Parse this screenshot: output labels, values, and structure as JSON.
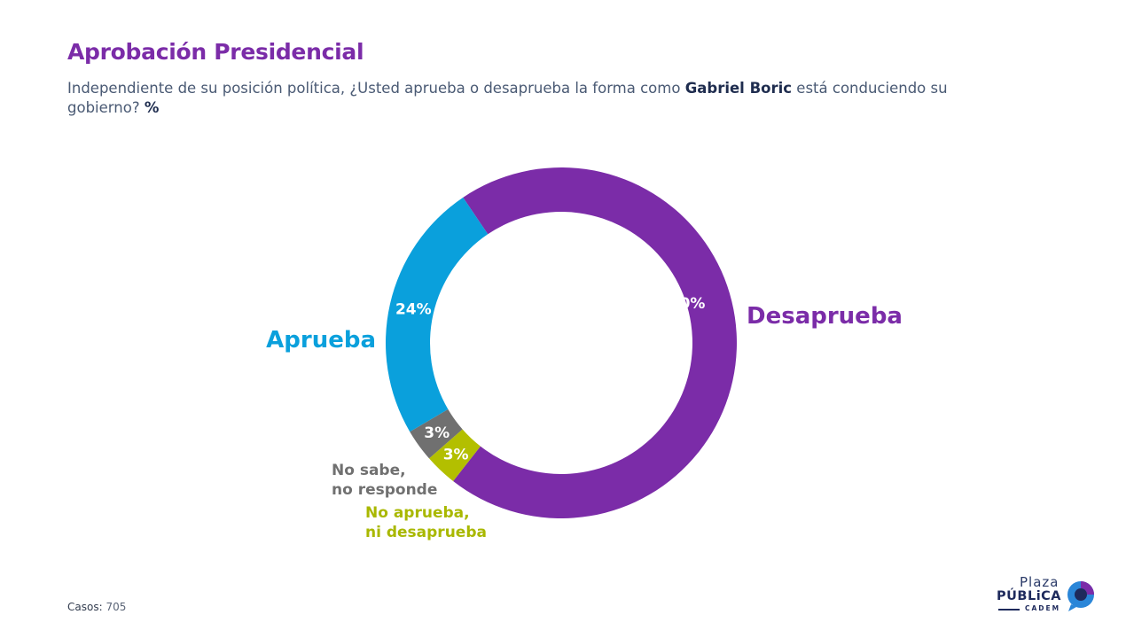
{
  "title": "Aprobación Presidencial",
  "subtitle": {
    "part1": "Independiente de su posición política, ¿Usted aprueba o desaprueba la forma como ",
    "name": "Gabriel Boric",
    "part2": " está conduciendo su gobierno? ",
    "pct": "%"
  },
  "chart_data": {
    "type": "pie",
    "variant": "donut",
    "categories": [
      "Desaprueba",
      "No aprueba, ni desaprueba",
      "No sabe, no responde",
      "Aprueba"
    ],
    "values": [
      70,
      3,
      3,
      24
    ],
    "value_labels": [
      "70%",
      "3%",
      "3%",
      "24%"
    ],
    "colors": [
      "#7b2ca8",
      "#b3bf00",
      "#707070",
      "#0aa0dc"
    ],
    "legend": [
      {
        "lines": [
          "Desaprueba"
        ],
        "color": "#7b2ca8"
      },
      {
        "lines": [
          "No aprueba,",
          "ni desaprueba"
        ],
        "color": "#a9b800"
      },
      {
        "lines": [
          "No sabe,",
          "no responde"
        ],
        "color": "#707070"
      },
      {
        "lines": [
          "Aprueba"
        ],
        "color": "#0aa0dc"
      }
    ]
  },
  "footer": {
    "label": "Casos",
    "value": "705"
  },
  "logo": {
    "plaza": "Plaza",
    "publica": "PÚBLiCA",
    "cadem": "CADEM"
  }
}
